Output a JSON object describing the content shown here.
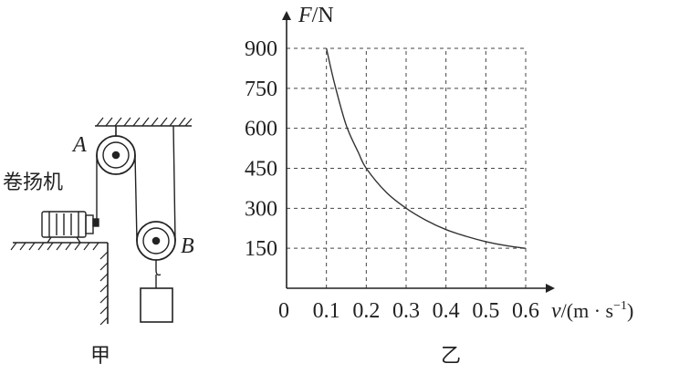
{
  "diagram_left": {
    "caption": "甲",
    "winch_label": "卷扬机",
    "pulley_a_label": "A",
    "pulley_b_label": "B"
  },
  "chart_data": {
    "type": "line",
    "caption": "乙",
    "x_axis_label_var": "v",
    "x_axis_label_unit": "/(m · s",
    "x_axis_label_exp": "−1",
    "x_axis_label_close": ")",
    "y_axis_label_var": "F",
    "y_axis_label_unit": "/N",
    "origin_label": "0",
    "xlim": [
      0,
      0.6
    ],
    "ylim": [
      0,
      900
    ],
    "x_ticks": [
      0.1,
      0.2,
      0.3,
      0.4,
      0.5,
      0.6
    ],
    "x_tick_labels": [
      "0.1",
      "0.2",
      "0.3",
      "0.4",
      "0.5",
      "0.6"
    ],
    "y_ticks": [
      150,
      300,
      450,
      600,
      750,
      900
    ],
    "y_tick_labels": [
      "150",
      "300",
      "450",
      "600",
      "750",
      "900"
    ],
    "grid": true,
    "series": [
      {
        "x": [
          0.1,
          0.12,
          0.15,
          0.18,
          0.2,
          0.25,
          0.3,
          0.35,
          0.4,
          0.45,
          0.5,
          0.55,
          0.6
        ],
        "y": [
          900,
          770,
          610,
          510,
          450,
          360,
          300,
          255,
          220,
          195,
          175,
          160,
          150
        ]
      }
    ]
  }
}
